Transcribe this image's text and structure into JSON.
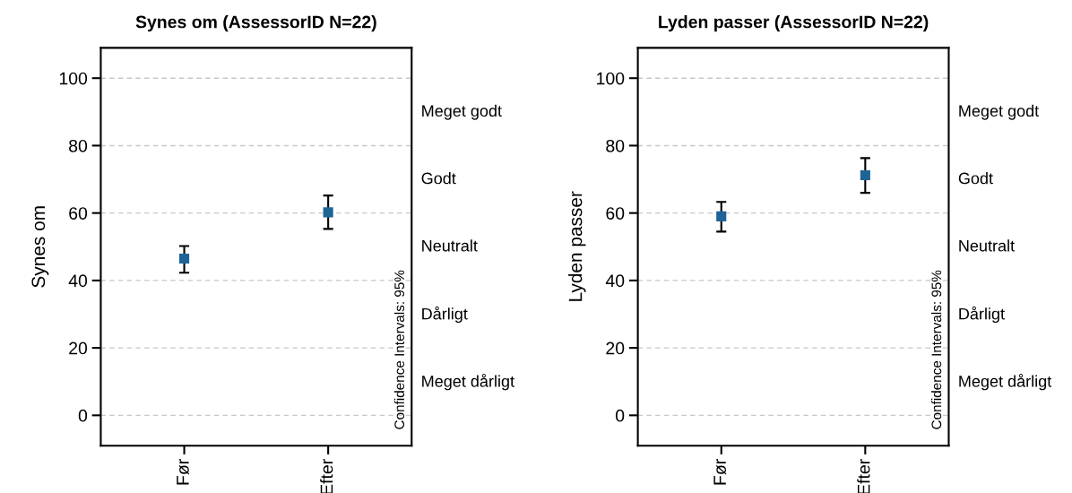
{
  "chart_data": [
    {
      "type": "scatter",
      "title": "Synes om (AssessorID N=22)",
      "ylabel": "Synes om",
      "categories": [
        "Før",
        "Efter"
      ],
      "series": [
        {
          "color": "#1f6496",
          "values": [
            46.5,
            60.2
          ],
          "errors": [
            [
              42.3,
              50.2
            ],
            [
              55.3,
              65.2
            ]
          ]
        }
      ],
      "ylim": [
        -9,
        109
      ],
      "yticks": [
        0,
        20,
        40,
        60,
        80,
        100
      ],
      "annotations": [
        "Meget godt",
        "Godt",
        "Neutralt",
        "Dårligt",
        "Meget dårligt",
        "Confidence Intervals: 95%"
      ],
      "grid": "y",
      "marker": "square"
    },
    {
      "type": "scatter",
      "title": "Lyden passer (AssessorID N=22)",
      "ylabel": "Lyden passer",
      "categories": [
        "Før",
        "Efter"
      ],
      "series": [
        {
          "color": "#1f6496",
          "values": [
            59.0,
            71.2
          ],
          "errors": [
            [
              54.5,
              63.3
            ],
            [
              66.0,
              76.3
            ]
          ]
        }
      ],
      "ylim": [
        -9,
        109
      ],
      "yticks": [
        0,
        20,
        40,
        60,
        80,
        100
      ],
      "annotations": [
        "Meget godt",
        "Godt",
        "Neutralt",
        "Dårligt",
        "Meget dårligt",
        "Confidence Intervals: 95%"
      ],
      "grid": "y",
      "marker": "square"
    }
  ]
}
